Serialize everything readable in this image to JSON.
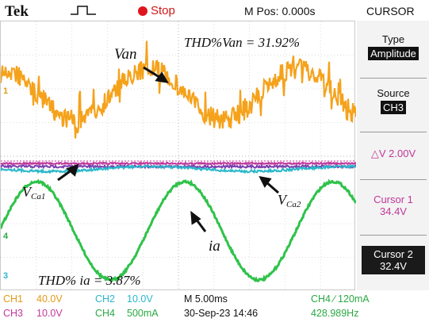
{
  "header": {
    "brand": "Tek",
    "status": "Stop",
    "mpos": "M Pos: 0.000s",
    "menu_title": "CURSOR"
  },
  "side_menu": {
    "type_label": "Type",
    "type_value": "Amplitude",
    "source_label": "Source",
    "source_value": "CH3",
    "delta_v": "△V 2.00V",
    "cursor1_label": "Cursor 1",
    "cursor1_value": "34.4V",
    "cursor2_label": "Cursor 2",
    "cursor2_value": "32.4V"
  },
  "annotations": {
    "thd_van": "THD%Van = 31.92%",
    "van": "Van",
    "vca1_main": "V",
    "vca1_sub": "Ca1",
    "vca2_main": "V",
    "vca2_sub": "Ca2",
    "ia": "ia",
    "thd_ia": "THD% ia = 3.87%"
  },
  "channel_markers": {
    "ch1": "1",
    "ch4": "4",
    "ch3": "3"
  },
  "bottom": {
    "ch1_label": "CH1",
    "ch1_scale": "40.0V",
    "ch2_label": "CH2",
    "ch2_scale": "10.0V",
    "ch3_label": "CH3",
    "ch3_scale": "10.0V",
    "ch4_label": "CH4",
    "ch4_scale": "500mA",
    "timebase": "M 5.00ms",
    "datetime": "30-Sep-23 14:46",
    "trigger": "CH4 ∕ 120mA",
    "frequency": "428.989Hz"
  },
  "colors": {
    "ch1": "#f5a21b",
    "ch2": "#29b7c9",
    "ch3": "#c0389a",
    "ch4": "#2fc24a",
    "purple_trace": "#7a3fb0"
  }
}
